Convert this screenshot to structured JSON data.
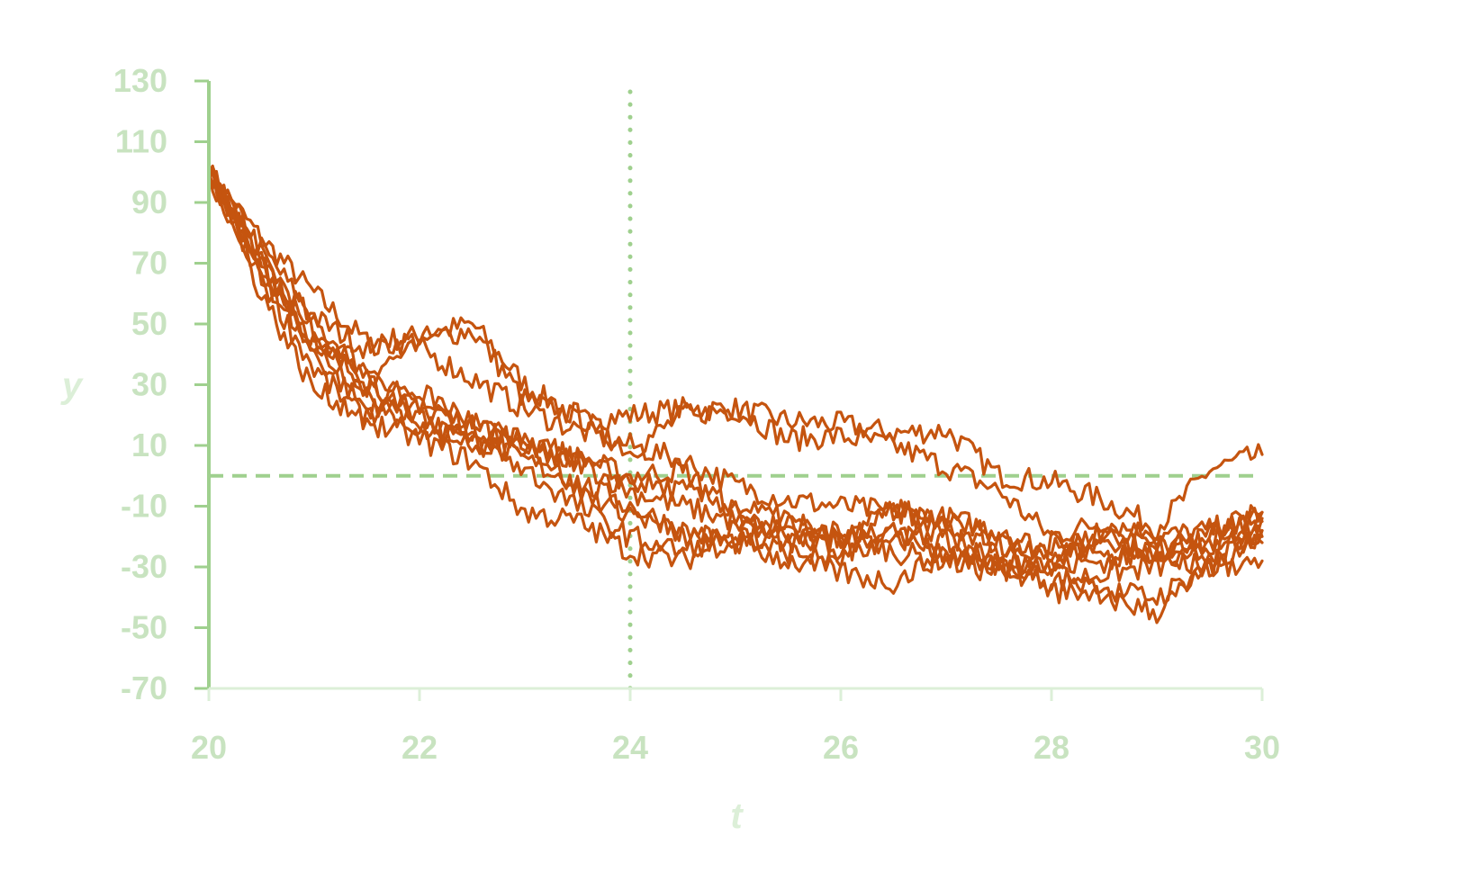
{
  "chart_data": {
    "type": "line",
    "title": "",
    "xlabel": "t",
    "ylabel": "y",
    "xlim": [
      20,
      30
    ],
    "ylim": [
      -70,
      130
    ],
    "xticks": [
      20,
      22,
      24,
      26,
      28,
      30
    ],
    "yticks": [
      130,
      110,
      90,
      70,
      50,
      30,
      10,
      -10,
      -30,
      -50,
      -70
    ],
    "grid": false,
    "legend": "none",
    "reference_lines": [
      {
        "orientation": "horizontal",
        "value": 0,
        "style": "dashed"
      },
      {
        "orientation": "vertical",
        "value": 24,
        "style": "dotted"
      }
    ],
    "colors": {
      "series": "#c5540f",
      "axis": "#9fd08e",
      "tick_label": "#c8e3c0",
      "axis_title": "#dcefd8",
      "reference": "#9fd08e"
    },
    "series": [
      {
        "x": [
          20,
          20.5,
          21,
          21.5,
          22,
          22.5,
          23,
          23.5,
          24,
          24.5,
          25,
          25.5,
          26,
          26.5,
          27,
          27.5,
          28,
          28.5,
          29,
          29.5,
          30
        ],
        "y": [
          100,
          78,
          60,
          44,
          46,
          50,
          30,
          18,
          20,
          22,
          22,
          18,
          17,
          14,
          15,
          0,
          -2,
          -8,
          -17,
          2,
          7
        ]
      },
      {
        "x": [
          20,
          20.5,
          21,
          21.5,
          22,
          22.5,
          23,
          23.5,
          24,
          24.5,
          25,
          25.5,
          26,
          26.5,
          27,
          27.5,
          28,
          28.5,
          29,
          29.5,
          30
        ],
        "y": [
          100,
          75,
          52,
          42,
          45,
          48,
          25,
          20,
          8,
          20,
          22,
          12,
          13,
          10,
          3,
          -5,
          -20,
          -15,
          -20,
          -18,
          -12
        ]
      },
      {
        "x": [
          20,
          20.5,
          21,
          21.5,
          22,
          22.5,
          23,
          23.5,
          24,
          24.5,
          25,
          25.5,
          26,
          26.5,
          27,
          27.5,
          28,
          28.5,
          29,
          29.5,
          30
        ],
        "y": [
          100,
          72,
          50,
          35,
          42,
          32,
          22,
          15,
          10,
          5,
          -3,
          -8,
          -10,
          -12,
          -14,
          -18,
          -25,
          -20,
          -25,
          -22,
          -15
        ]
      },
      {
        "x": [
          20,
          20.5,
          21,
          21.5,
          22,
          22.5,
          23,
          23.5,
          24,
          24.5,
          25,
          25.5,
          26,
          26.5,
          27,
          27.5,
          28,
          28.5,
          29,
          29.5,
          30
        ],
        "y": [
          100,
          70,
          45,
          30,
          24,
          16,
          12,
          6,
          0,
          2,
          -12,
          -20,
          -18,
          -25,
          -28,
          -32,
          -22,
          -28,
          -24,
          -20,
          -14
        ]
      },
      {
        "x": [
          20,
          20.5,
          21,
          21.5,
          22,
          22.5,
          23,
          23.5,
          24,
          24.5,
          25,
          25.5,
          26,
          26.5,
          27,
          27.5,
          28,
          28.5,
          29,
          29.5,
          30
        ],
        "y": [
          100,
          68,
          40,
          22,
          18,
          10,
          8,
          5,
          -5,
          -10,
          -15,
          -20,
          -25,
          -20,
          -22,
          -30,
          -35,
          -32,
          -30,
          -25,
          -20
        ]
      },
      {
        "x": [
          20,
          20.5,
          21,
          21.5,
          22,
          22.5,
          23,
          23.5,
          24,
          24.5,
          25,
          25.5,
          26,
          26.5,
          27,
          27.5,
          28,
          28.5,
          29,
          29.5,
          30
        ],
        "y": [
          100,
          72,
          42,
          28,
          15,
          12,
          5,
          -2,
          -10,
          -18,
          -22,
          -15,
          -20,
          -18,
          -28,
          -25,
          -30,
          -40,
          -45,
          -30,
          -18
        ]
      },
      {
        "x": [
          20,
          20.5,
          21,
          21.5,
          22,
          22.5,
          23,
          23.5,
          24,
          24.5,
          25,
          25.5,
          26,
          26.5,
          27,
          27.5,
          28,
          28.5,
          29,
          29.5,
          30
        ],
        "y": [
          100,
          65,
          35,
          18,
          12,
          5,
          -12,
          -15,
          -25,
          -28,
          -20,
          -25,
          -28,
          -18,
          -20,
          -22,
          -38,
          -38,
          -40,
          -30,
          -22
        ]
      },
      {
        "x": [
          20,
          20.5,
          21,
          21.5,
          22,
          22.5,
          23,
          23.5,
          24,
          24.5,
          25,
          25.5,
          26,
          26.5,
          27,
          27.5,
          28,
          28.5,
          29,
          29.5,
          30
        ],
        "y": [
          100,
          65,
          45,
          35,
          22,
          15,
          12,
          -5,
          -12,
          -20,
          -22,
          -28,
          -32,
          -35,
          -25,
          -30,
          -30,
          -28,
          -25,
          -20,
          -12
        ]
      },
      {
        "x": [
          20,
          20.5,
          21,
          21.5,
          22,
          22.5,
          23,
          23.5,
          24,
          24.5,
          25,
          25.5,
          26,
          26.5,
          27,
          27.5,
          28,
          28.5,
          29,
          29.5,
          30
        ],
        "y": [
          100,
          60,
          28,
          20,
          28,
          18,
          10,
          5,
          -2,
          -5,
          -10,
          -15,
          -22,
          -12,
          -15,
          -20,
          -25,
          -18,
          -20,
          -25,
          -18
        ]
      },
      {
        "x": [
          20,
          20.5,
          21,
          21.5,
          22,
          22.5,
          23,
          23.5,
          24,
          24.5,
          25,
          25.5,
          26,
          26.5,
          27,
          27.5,
          28,
          28.5,
          29,
          29.5,
          30
        ],
        "y": [
          100,
          70,
          48,
          30,
          20,
          12,
          2,
          -10,
          -20,
          -25,
          -18,
          -22,
          -20,
          -10,
          -18,
          -30,
          -30,
          -20,
          -28,
          -30,
          -28
        ]
      }
    ]
  }
}
